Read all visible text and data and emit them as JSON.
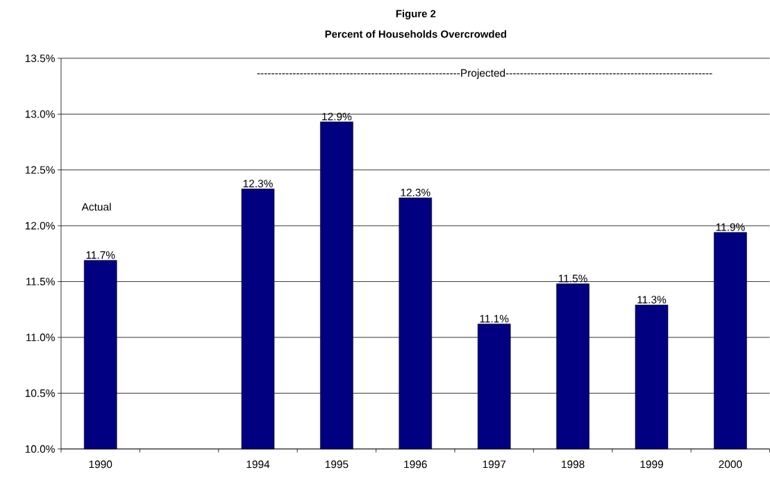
{
  "chart_data": {
    "type": "bar",
    "title": "Figure 2",
    "subtitle": "Percent of Households Overcrowded",
    "categories": [
      "1990",
      null,
      "1994",
      "1995",
      "1996",
      "1997",
      "1998",
      "1999",
      "2000"
    ],
    "values": [
      11.69,
      null,
      12.33,
      12.93,
      12.25,
      11.12,
      11.48,
      11.29,
      11.94
    ],
    "value_labels": [
      "11.7%",
      null,
      "12.3%",
      "12.9%",
      "12.3%",
      "11.1%",
      "11.5%",
      "11.3%",
      "11.9%"
    ],
    "color": "#000080",
    "ylim": [
      10,
      13.5
    ],
    "yticks": [
      {
        "value": 10,
        "label": "10.0%"
      },
      {
        "value": 10.5,
        "label": "10.5%"
      },
      {
        "value": 11,
        "label": "11.0%"
      },
      {
        "value": 11.5,
        "label": "11.5%"
      },
      {
        "value": 12,
        "label": "12.0%"
      },
      {
        "value": 12.5,
        "label": "12.5%"
      },
      {
        "value": 13,
        "label": "13.0%"
      },
      {
        "value": 13.5,
        "label": "13.5%"
      }
    ],
    "grid": "y",
    "annotations": [
      "Actual",
      "---------------------------------------------------------Projected----------------------------------------------------------"
    ]
  }
}
